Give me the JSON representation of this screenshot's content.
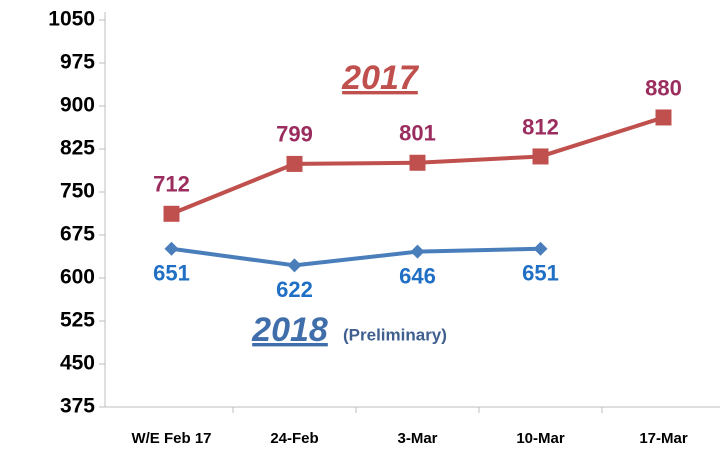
{
  "chart_data": {
    "type": "line",
    "categories": [
      "W/E Feb 17",
      "24-Feb",
      "3-Mar",
      "10-Mar",
      "17-Mar"
    ],
    "series": [
      {
        "name": "2017",
        "color": "#c0504d",
        "label_color": "#9b2d5e",
        "marker": "square",
        "values": [
          712,
          799,
          801,
          812,
          880
        ]
      },
      {
        "name": "2018",
        "color": "#4a7ebb",
        "label_color": "#1f6fc5",
        "marker": "diamond",
        "values": [
          651,
          622,
          646,
          651,
          null
        ]
      }
    ],
    "annotation": "(Preliminary)",
    "ylim": [
      375,
      1050
    ],
    "yticks": [
      375,
      450,
      525,
      600,
      675,
      750,
      825,
      900,
      975,
      1050
    ],
    "grid": false
  }
}
